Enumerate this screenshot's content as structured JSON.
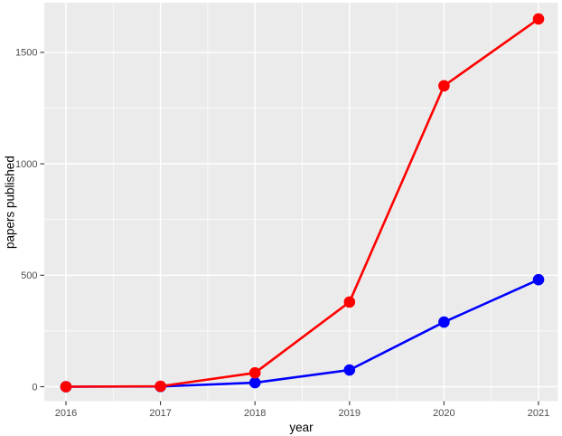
{
  "chart_data": {
    "type": "line",
    "title": "",
    "xlabel": "year",
    "ylabel": "papers published",
    "x": [
      2016,
      2017,
      2018,
      2019,
      2020,
      2021
    ],
    "x_tick_labels": [
      "2016",
      "2017",
      "2018",
      "2019",
      "2020",
      "2021"
    ],
    "y_ticks": [
      0,
      500,
      1000,
      1500
    ],
    "y_tick_labels": [
      "0",
      "500",
      "1000",
      "1500"
    ],
    "y_minor_ticks": [
      250,
      750,
      1250
    ],
    "ylim": [
      -80,
      1730
    ],
    "xlim": [
      2015.75,
      2021.25
    ],
    "grid": "major-and-minor",
    "legend_position": "none",
    "series": [
      {
        "name": "blue-series",
        "color": "#0000ff",
        "values": [
          0,
          1,
          18,
          75,
          290,
          480
        ]
      },
      {
        "name": "red-series",
        "color": "#ff0000",
        "values": [
          0,
          2,
          62,
          380,
          1350,
          1650
        ]
      }
    ],
    "style": {
      "panel_background": "#ebebeb",
      "grid_color": "#ffffff",
      "tick_color": "#333333",
      "tick_label_color": "#4d4d4d",
      "axis_title_color": "#000000"
    }
  }
}
